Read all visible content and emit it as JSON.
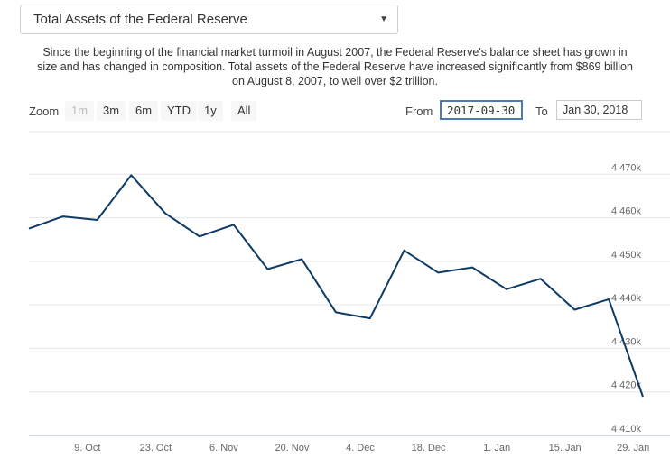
{
  "selector": {
    "selected": "Total Assets of the Federal Reserve",
    "chevron_icon": "chevron-down-icon"
  },
  "description": "Since the beginning of the financial market turmoil in August 2007, the Federal Reserve's balance sheet has grown in size and has changed in composition. Total assets of the Federal Reserve have increased significantly from $869 billion on August 8, 2007, to well over $2 trillion.",
  "range_selector": {
    "zoom_label": "Zoom",
    "buttons": [
      "1m",
      "3m",
      "6m",
      "YTD",
      "1y",
      "All"
    ],
    "disabled": [
      "1m"
    ],
    "from_label": "From",
    "from_value": "2017-09-30",
    "to_label": "To",
    "to_value": "Jan 30, 2018"
  },
  "chart_data": {
    "type": "line",
    "x": [
      "2017-09-27",
      "2017-10-04",
      "2017-10-11",
      "2017-10-18",
      "2017-10-25",
      "2017-11-01",
      "2017-11-08",
      "2017-11-15",
      "2017-11-22",
      "2017-11-29",
      "2017-12-06",
      "2017-12-13",
      "2017-12-20",
      "2017-12-27",
      "2018-01-03",
      "2018-01-10",
      "2018-01-17",
      "2018-01-24",
      "2018-01-31"
    ],
    "values": [
      4457.5,
      4460.3,
      4459.5,
      4469.8,
      4461.0,
      4455.7,
      4458.4,
      4448.2,
      4450.5,
      4438.3,
      4436.9,
      4452.5,
      4447.4,
      4448.6,
      4443.6,
      4446.0,
      4438.9,
      4441.3,
      4418.9
    ],
    "xticks": [
      {
        "date": "2017-10-09",
        "label": "9. Oct"
      },
      {
        "date": "2017-10-23",
        "label": "23. Oct"
      },
      {
        "date": "2017-11-06",
        "label": "6. Nov"
      },
      {
        "date": "2017-11-20",
        "label": "20. Nov"
      },
      {
        "date": "2017-12-04",
        "label": "4. Dec"
      },
      {
        "date": "2017-12-18",
        "label": "18. Dec"
      },
      {
        "date": "2018-01-01",
        "label": "1. Jan"
      },
      {
        "date": "2018-01-15",
        "label": "15. Jan"
      },
      {
        "date": "2018-01-29",
        "label": "29. Jan"
      }
    ],
    "yticks": [
      {
        "value": 4410,
        "label": "4 410k"
      },
      {
        "value": 4420,
        "label": "4 420k"
      },
      {
        "value": 4430,
        "label": "4 430k"
      },
      {
        "value": 4440,
        "label": "4 440k"
      },
      {
        "value": 4450,
        "label": "4 450k"
      },
      {
        "value": 4460,
        "label": "4 460k"
      },
      {
        "value": 4470,
        "label": "4 470k"
      }
    ],
    "ylim": [
      4410,
      4480
    ],
    "xlim": [
      "2017-09-27",
      "2018-01-31"
    ],
    "line_color": "#0d3a66",
    "grid_color": "#e6e6e6",
    "grid": true
  }
}
